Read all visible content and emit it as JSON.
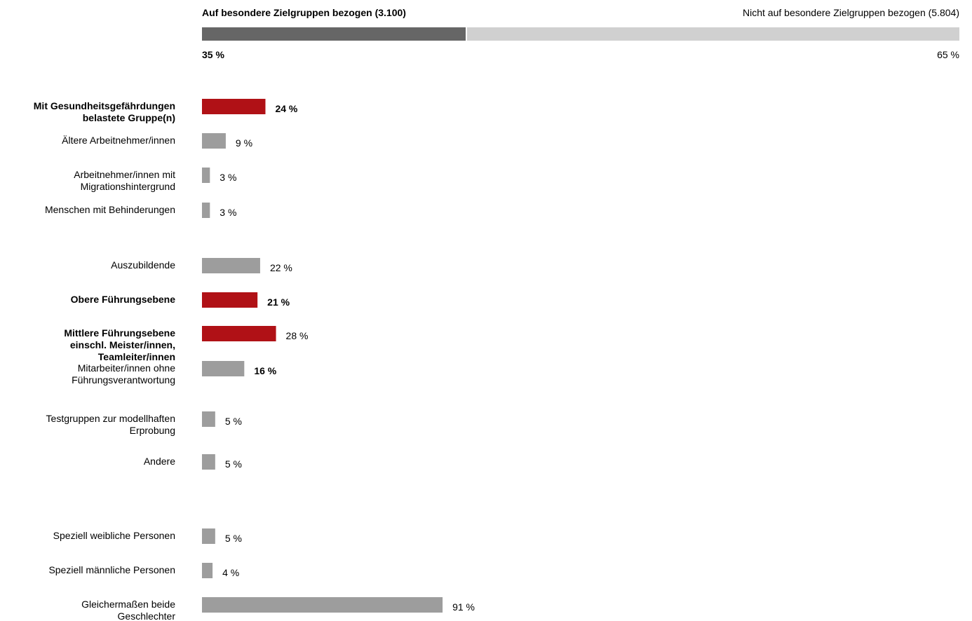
{
  "chart_data": [
    {
      "type": "bar",
      "orientation": "horizontal",
      "stacked": true,
      "series": [
        {
          "name": "Auf besondere Zielgruppen bezogen (3.100)",
          "value": 35,
          "value_label": "35 %",
          "color": "#666666"
        },
        {
          "name": "Nicht auf besondere Zielgruppen bezogen (5.804)",
          "value": 65,
          "value_label": "65 %",
          "color": "#d0d0d0"
        }
      ]
    },
    {
      "type": "bar",
      "orientation": "horizontal",
      "xlim": [
        0,
        100
      ],
      "grid": false,
      "categories": [
        {
          "label": "Mit Gesundheitsgefährdungen belastete Gruppe(n)",
          "value": 24,
          "value_label": "24 %",
          "highlight": true,
          "bold_label": true,
          "bold_value": true
        },
        {
          "label": "Ältere Arbeitnehmer/innen",
          "value": 9,
          "value_label": "9 %",
          "highlight": false,
          "bold_label": false,
          "bold_value": false
        },
        {
          "label": "Arbeitnehmer/innen mit Migrationshintergrund",
          "value": 3,
          "value_label": "3 %",
          "highlight": false,
          "bold_label": false,
          "bold_value": false
        },
        {
          "label": "Menschen mit Behinderungen",
          "value": 3,
          "value_label": "3 %",
          "highlight": false,
          "bold_label": false,
          "bold_value": false
        },
        {
          "label": "Auszubildende",
          "value": 22,
          "value_label": "22 %",
          "highlight": false,
          "bold_label": false,
          "bold_value": false
        },
        {
          "label": "Obere Führungsebene",
          "value": 21,
          "value_label": "21 %",
          "highlight": true,
          "bold_label": true,
          "bold_value": true
        },
        {
          "label": "Mittlere Führungsebene einschl. Meister/innen, Teamleiter/innen",
          "value": 28,
          "value_label": "28 %",
          "highlight": true,
          "bold_label": true,
          "bold_value": false
        },
        {
          "label": "Mitarbeiter/innen ohne Führungsverantwortung",
          "value": 16,
          "value_label": "16 %",
          "highlight": false,
          "bold_label": false,
          "bold_value": true
        },
        {
          "label": "Testgruppen zur modellhaften Erprobung",
          "value": 5,
          "value_label": "5 %",
          "highlight": false,
          "bold_label": false,
          "bold_value": false
        },
        {
          "label": "Andere",
          "value": 5,
          "value_label": "5 %",
          "highlight": false,
          "bold_label": false,
          "bold_value": false
        },
        {
          "label": "Speziell weibliche Personen",
          "value": 5,
          "value_label": "5 %",
          "highlight": false,
          "bold_label": false,
          "bold_value": false
        },
        {
          "label": "Speziell männliche Personen",
          "value": 4,
          "value_label": "4 %",
          "highlight": false,
          "bold_label": false,
          "bold_value": false
        },
        {
          "label": "Gleichermaßen beide Geschlechter",
          "value": 91,
          "value_label": "91 %",
          "highlight": false,
          "bold_label": false,
          "bold_value": false
        }
      ]
    }
  ],
  "colors": {
    "highlight": "#b01116",
    "default": "#9d9d9d",
    "text": "#111111"
  }
}
